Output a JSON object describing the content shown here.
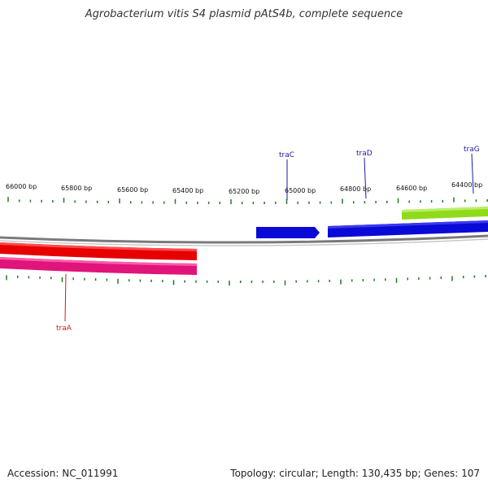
{
  "title": "Agrobacterium vitis S4 plasmid pAtS4b, complete sequence",
  "footer": {
    "accession": "Accession: NC_011991",
    "summary": "Topology: circular; Length: 130,435 bp; Genes: 107"
  },
  "colors": {
    "tick": "#1f7a1f",
    "backbone": "#7a7a7a",
    "label_blue": "#1a1aa6",
    "label_red": "#cc1a1a"
  },
  "ruler_labels": [
    "66000 bp",
    "65800 bp",
    "65600 bp",
    "65400 bp",
    "65200 bp",
    "65000 bp",
    "64800 bp",
    "64600 bp",
    "64400 bp"
  ],
  "genes": [
    {
      "name": "traC",
      "color": "#1a1aa6"
    },
    {
      "name": "traD",
      "color": "#1a1aa6"
    },
    {
      "name": "traG",
      "color": "#1a1aa6"
    },
    {
      "name": "traA",
      "color": "#cc1a1a"
    }
  ],
  "features": [
    {
      "kind": "arrow-blue",
      "color": "#0a0ad6"
    },
    {
      "kind": "arrow-blue-long",
      "color": "#0a0ad6"
    },
    {
      "kind": "bar-green",
      "color": "#8fdb1a"
    },
    {
      "kind": "bar-red",
      "color": "#e60000"
    },
    {
      "kind": "bar-pink",
      "color": "#e0147a"
    }
  ]
}
